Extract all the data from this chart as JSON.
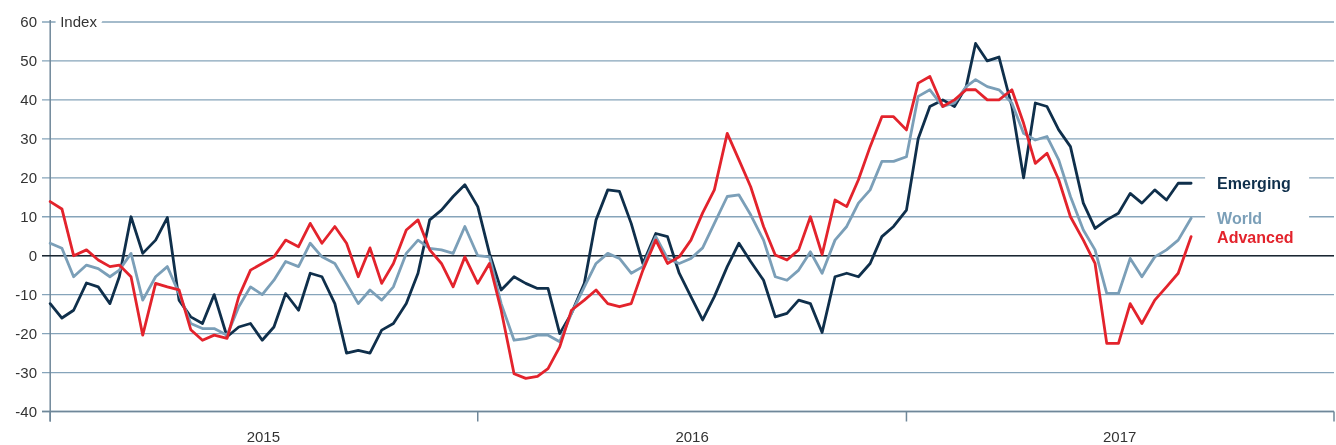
{
  "chart_data": {
    "type": "line",
    "ylabel": "Index",
    "x": [
      "2015-01-01",
      "2015-01-11",
      "2015-01-21",
      "2015-02-01",
      "2015-02-11",
      "2015-02-21",
      "2015-03-01",
      "2015-03-11",
      "2015-03-21",
      "2015-04-01",
      "2015-04-11",
      "2015-04-21",
      "2015-05-01",
      "2015-05-11",
      "2015-05-21",
      "2015-06-01",
      "2015-06-11",
      "2015-06-21",
      "2015-07-01",
      "2015-07-11",
      "2015-07-21",
      "2015-08-01",
      "2015-08-11",
      "2015-08-21",
      "2015-09-01",
      "2015-09-11",
      "2015-09-21",
      "2015-10-01",
      "2015-10-11",
      "2015-10-21",
      "2015-11-01",
      "2015-11-11",
      "2015-11-21",
      "2015-12-01",
      "2015-12-11",
      "2015-12-21",
      "2016-01-01",
      "2016-01-11",
      "2016-01-21",
      "2016-02-01",
      "2016-02-11",
      "2016-02-21",
      "2016-03-01",
      "2016-03-11",
      "2016-03-21",
      "2016-04-01",
      "2016-04-11",
      "2016-04-21",
      "2016-05-01",
      "2016-05-11",
      "2016-05-21",
      "2016-06-01",
      "2016-06-11",
      "2016-06-21",
      "2016-07-01",
      "2016-07-11",
      "2016-07-21",
      "2016-08-01",
      "2016-08-11",
      "2016-08-21",
      "2016-09-01",
      "2016-09-11",
      "2016-09-21",
      "2016-10-01",
      "2016-10-11",
      "2016-10-21",
      "2016-11-01",
      "2016-11-11",
      "2016-11-21",
      "2016-12-01",
      "2016-12-11",
      "2016-12-21",
      "2017-01-01",
      "2017-01-11",
      "2017-01-21",
      "2017-02-01",
      "2017-02-11",
      "2017-02-21",
      "2017-03-01",
      "2017-03-11",
      "2017-03-21",
      "2017-04-01",
      "2017-04-11",
      "2017-04-21",
      "2017-05-01",
      "2017-05-11",
      "2017-05-21",
      "2017-06-01",
      "2017-06-11",
      "2017-06-21",
      "2017-07-01",
      "2017-07-11",
      "2017-07-21",
      "2017-08-01",
      "2017-08-11",
      "2017-08-21",
      "2017-09-01"
    ],
    "series": [
      {
        "name": "Emerging",
        "color": "#0f2f4b",
        "values": [
          -12.3,
          -16,
          -14,
          -7,
          -8,
          -12.3,
          -5.4,
          10,
          0.6,
          4,
          9.8,
          -11.4,
          -15.7,
          -17.4,
          -10,
          -20.8,
          -18.3,
          -17.4,
          -21.7,
          -18.3,
          -9.7,
          -14,
          -4.5,
          -5.4,
          -12.3,
          -25,
          -24.3,
          -25,
          -19.1,
          -17.4,
          -12.3,
          -4.5,
          9.2,
          11.7,
          15.2,
          18.2,
          12.6,
          0.6,
          -8.8,
          -5.4,
          -7.1,
          -8.4,
          -8.4,
          -20,
          -14.8,
          -7.1,
          9.2,
          16.9,
          16.5,
          8.3,
          -2,
          5.7,
          4.9,
          -4.5,
          -10.5,
          -16.5,
          -10.5,
          -2.8,
          3.2,
          -1.5,
          -6.3,
          -15.7,
          -14.8,
          -11.4,
          -12.3,
          -19.7,
          -5.4,
          -4.5,
          -5.4,
          -2,
          4.9,
          7.5,
          11.7,
          30,
          38.3,
          40,
          38.3,
          43.4,
          54.5,
          50,
          51,
          38.3,
          20,
          39.2,
          38.3,
          32.3,
          28,
          13.5,
          7,
          9.2,
          10.9,
          16,
          13.5,
          16.9,
          14.3,
          18.6,
          18.6
        ]
      },
      {
        "name": "World",
        "color": "#7b9fb8",
        "values": [
          3.2,
          1.9,
          -5.4,
          -2.4,
          -3.3,
          -5.4,
          -3.7,
          0.6,
          -11.4,
          -5.4,
          -2.8,
          -9.7,
          -17.4,
          -18.7,
          -18.7,
          -20.4,
          -13.1,
          -8,
          -10,
          -6.3,
          -1.5,
          -2.8,
          3.2,
          -0.3,
          -2,
          -7.1,
          -12.3,
          -8.8,
          -11.4,
          -8,
          0.6,
          4,
          1.9,
          1.5,
          0.6,
          7.5,
          0,
          -0.3,
          -12.3,
          -21.7,
          -21.3,
          -20.4,
          -20.4,
          -22.1,
          -14.8,
          -8,
          -2,
          0.6,
          -0.7,
          -4.5,
          -2.8,
          4.9,
          -0.7,
          -2,
          -0.7,
          2,
          8.3,
          15.2,
          15.6,
          10.5,
          4,
          -5.4,
          -6.3,
          -3.7,
          1,
          -4.5,
          4,
          7.5,
          13.5,
          16.9,
          24.2,
          24.2,
          25.4,
          40.9,
          42.6,
          38.3,
          39.2,
          43.4,
          45.2,
          43.4,
          42.6,
          39.2,
          31.4,
          29.7,
          30.6,
          24.6,
          15.2,
          6.6,
          1.5,
          -9.7,
          -9.7,
          -0.7,
          -5.4,
          -0.3,
          1.5,
          4,
          9.6
        ]
      },
      {
        "name": "Advanced",
        "color": "#e3232c",
        "values": [
          13.9,
          12,
          0,
          1.5,
          -1.1,
          -2.8,
          -2.4,
          -5.4,
          -20.4,
          -7.1,
          -8,
          -8.8,
          -19,
          -21.7,
          -20.4,
          -21.2,
          -10.5,
          -3.7,
          -2,
          -0.3,
          4,
          2.3,
          8.3,
          3.2,
          7.5,
          3.2,
          -5.4,
          2,
          -7.1,
          -2,
          6.6,
          9.2,
          1.5,
          -2,
          -8,
          -0.3,
          -7.1,
          -2,
          -14,
          -30.3,
          -31.5,
          -31,
          -29,
          -23.4,
          -14,
          -11.4,
          -8.8,
          -12.3,
          -13.1,
          -12.3,
          -3.7,
          4,
          -2,
          -0.3,
          4,
          11,
          16.9,
          31.4,
          24.6,
          17.7,
          7.5,
          0.2,
          -1.1,
          1.5,
          10,
          0.3,
          14.3,
          12.6,
          19.5,
          28,
          35.7,
          35.7,
          32.3,
          44.3,
          46,
          38.3,
          40,
          42.6,
          42.6,
          40,
          40,
          42.6,
          34,
          23.7,
          26.3,
          19.5,
          10,
          4,
          -2,
          -22.5,
          -22.5,
          -12.3,
          -17.4,
          -11.4,
          -8,
          -4.5,
          4.9
        ]
      }
    ],
    "xlim": [
      "2014-12-25",
      "2018-01-01"
    ],
    "xticks": [
      {
        "value": "2015-01-01",
        "label": null
      },
      {
        "value": "2015-07-02",
        "label": "2015"
      },
      {
        "value": "2016-01-01",
        "label": null
      },
      {
        "value": "2016-07-02",
        "label": "2016"
      },
      {
        "value": "2017-01-01",
        "label": null
      },
      {
        "value": "2017-07-02",
        "label": "2017"
      },
      {
        "value": "2018-01-01",
        "label": null
      }
    ],
    "ylim": [
      -40,
      60
    ],
    "yticks": [
      -40,
      -30,
      -20,
      -10,
      0,
      10,
      20,
      30,
      40,
      50,
      60
    ],
    "grid": "y",
    "ref_lines": [
      {
        "axis": "y",
        "value": 0,
        "color": "#1b2631"
      }
    ]
  }
}
